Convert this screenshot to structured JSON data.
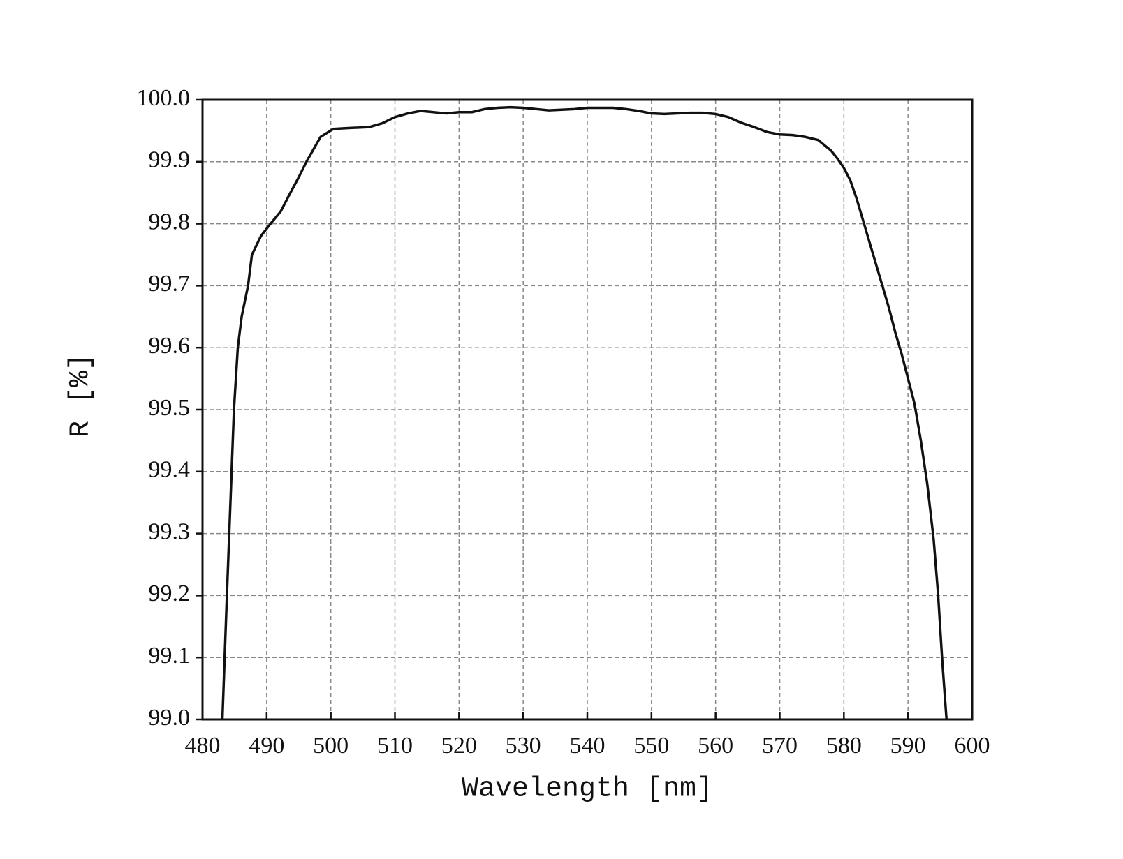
{
  "chart_data": {
    "type": "line",
    "x_label": "Wavelength [nm]",
    "y_label": "R [%]",
    "xlim": [
      480,
      600
    ],
    "xticks": [
      480,
      490,
      500,
      510,
      520,
      530,
      540,
      550,
      560,
      570,
      580,
      590,
      600
    ],
    "ylim": [
      99,
      100
    ],
    "yticks": [
      {
        "value": 99,
        "label": "99.0"
      },
      99.1,
      99.2,
      99.3,
      99.4,
      99.5,
      99.6,
      99.7,
      99.8,
      99.9,
      {
        "value": 100,
        "label": "100.0"
      }
    ],
    "grid": true,
    "series": [
      {
        "color": "#111111",
        "x": [
          483.1,
          483.8,
          484.9,
          485.5,
          486.1,
          487.1,
          487.7,
          489.1,
          490.6,
          492.2,
          493.7,
          495.0,
          496.2,
          498.4,
          500.4,
          502,
          504,
          506,
          508,
          510,
          512,
          514,
          516,
          518,
          520,
          522,
          524,
          526,
          528,
          530,
          532,
          534,
          536,
          538,
          540,
          542,
          544,
          546,
          548,
          550,
          552,
          554,
          556,
          558,
          560,
          562,
          564,
          566,
          568,
          570,
          572,
          574,
          576,
          578,
          579,
          580,
          581,
          582,
          583,
          584,
          585,
          586,
          587,
          588,
          589,
          590,
          591,
          592,
          593,
          594,
          594.7,
          595.3,
          596
        ],
        "values": [
          99.0,
          99.2,
          99.5,
          99.6,
          99.65,
          99.7,
          99.75,
          99.78,
          99.8,
          99.82,
          99.85,
          99.875,
          99.9,
          99.94,
          99.953,
          99.954,
          99.955,
          99.956,
          99.962,
          99.972,
          99.978,
          99.982,
          99.98,
          99.978,
          99.98,
          99.98,
          99.985,
          99.987,
          99.988,
          99.987,
          99.985,
          99.983,
          99.984,
          99.985,
          99.987,
          99.987,
          99.987,
          99.985,
          99.982,
          99.978,
          99.977,
          99.978,
          99.979,
          99.979,
          99.977,
          99.972,
          99.963,
          99.956,
          99.948,
          99.944,
          99.943,
          99.94,
          99.935,
          99.918,
          99.905,
          99.89,
          99.87,
          99.84,
          99.805,
          99.77,
          99.735,
          99.7,
          99.665,
          99.625,
          99.59,
          99.55,
          99.51,
          99.45,
          99.38,
          99.29,
          99.2,
          99.1,
          99.0
        ]
      }
    ]
  }
}
